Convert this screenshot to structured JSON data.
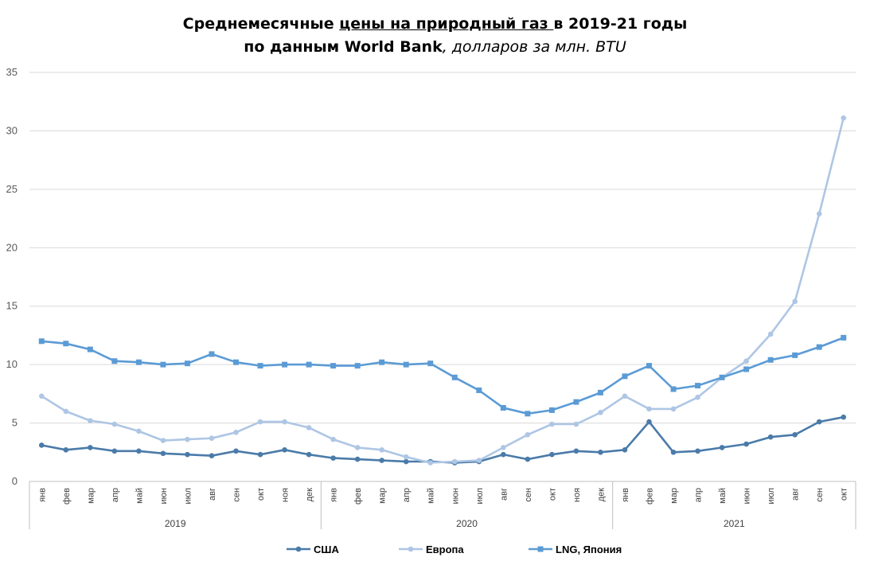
{
  "chart_data": {
    "type": "line",
    "title": {
      "p1": "Среднемесячные ",
      "p2": "цены на природный газ ",
      "p3": "в 2019-21 годы",
      "p4": "по данным World Bank",
      "p5": ", долларов за млн. BTU"
    },
    "months": [
      "янв",
      "фев",
      "мар",
      "апр",
      "май",
      "июн",
      "июл",
      "авг",
      "сен",
      "окт",
      "ноя",
      "дек",
      "янв",
      "фев",
      "мар",
      "апр",
      "май",
      "июн",
      "июл",
      "авг",
      "сен",
      "окт",
      "ноя",
      "дек",
      "янв",
      "фев",
      "мар",
      "апр",
      "май",
      "июн",
      "июл",
      "авг",
      "сен",
      "окт"
    ],
    "years": [
      {
        "label": "2019",
        "start": 0,
        "end": 12
      },
      {
        "label": "2020",
        "start": 12,
        "end": 24
      },
      {
        "label": "2021",
        "start": 24,
        "end": 34
      }
    ],
    "ylim": [
      0,
      35
    ],
    "yticks": [
      0,
      5,
      10,
      15,
      20,
      25,
      30,
      35
    ],
    "grid": true,
    "legend_position": "bottom",
    "series": [
      {
        "name": "США",
        "color": "#4a7ba9",
        "marker": "circle",
        "values": [
          3.1,
          2.7,
          2.9,
          2.6,
          2.6,
          2.4,
          2.3,
          2.2,
          2.6,
          2.3,
          2.7,
          2.3,
          2.0,
          1.9,
          1.8,
          1.7,
          1.7,
          1.6,
          1.7,
          2.3,
          1.9,
          2.3,
          2.6,
          2.5,
          2.7,
          5.1,
          2.5,
          2.6,
          2.9,
          3.2,
          3.8,
          4.0,
          5.1,
          5.5
        ]
      },
      {
        "name": "Европа",
        "color": "#aec6e4",
        "marker": "circle",
        "values": [
          7.3,
          6.0,
          5.2,
          4.9,
          4.3,
          3.5,
          3.6,
          3.7,
          4.2,
          5.1,
          5.1,
          4.6,
          3.6,
          2.9,
          2.7,
          2.1,
          1.6,
          1.7,
          1.8,
          2.9,
          4.0,
          4.9,
          4.9,
          5.9,
          7.3,
          6.2,
          6.2,
          7.2,
          8.9,
          10.3,
          12.6,
          15.4,
          22.9,
          31.1
        ]
      },
      {
        "name": "LNG, Япония",
        "color": "#5b9bd5",
        "marker": "square",
        "values": [
          12.0,
          11.8,
          11.3,
          10.3,
          10.2,
          10.0,
          10.1,
          10.9,
          10.2,
          9.9,
          10.0,
          10.0,
          9.9,
          9.9,
          10.2,
          10.0,
          10.1,
          8.9,
          7.8,
          6.3,
          5.8,
          6.1,
          6.8,
          7.6,
          9.0,
          9.9,
          7.9,
          8.2,
          8.9,
          9.6,
          10.4,
          10.8,
          11.5,
          12.3
        ]
      }
    ]
  }
}
